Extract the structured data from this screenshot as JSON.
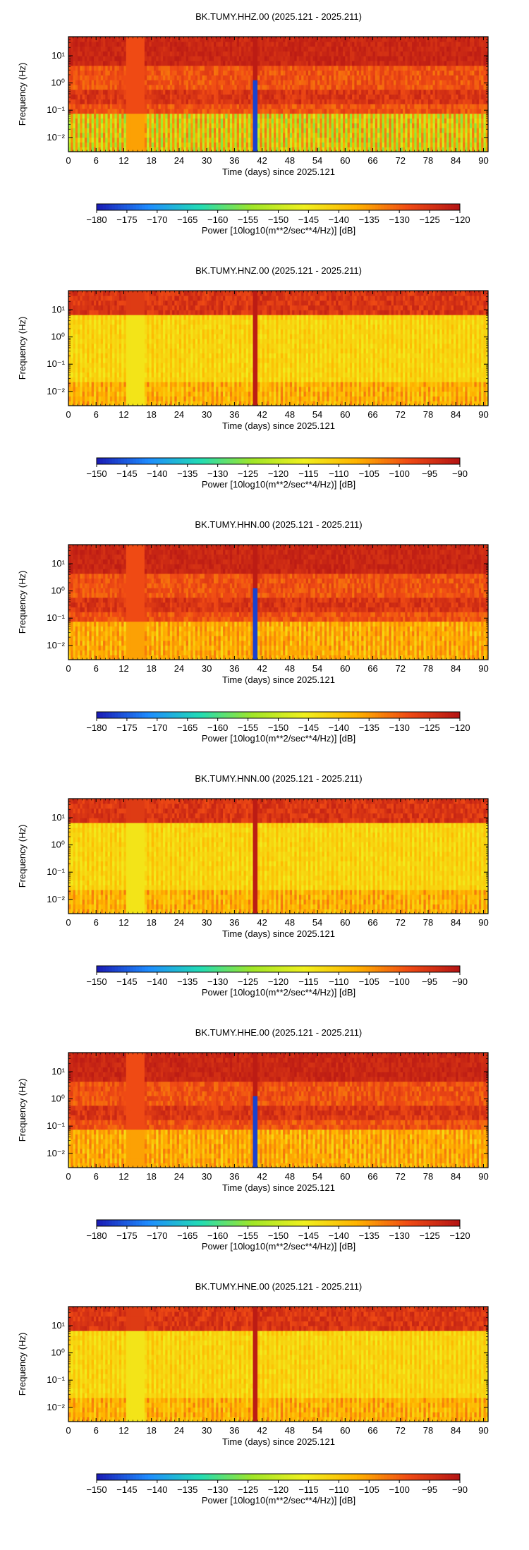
{
  "chart_data": [
    {
      "type": "heatmap",
      "title": "BK.TUMY.HHZ.00 (2025.121 - 2025.211)",
      "xlabel": "Time (days) since 2025.121",
      "ylabel": "Frequency (Hz)",
      "xlim": [
        0,
        91
      ],
      "ylim": [
        0.003,
        50
      ],
      "y_scale": "log",
      "x_ticks": [
        0,
        6,
        12,
        18,
        24,
        30,
        36,
        42,
        48,
        54,
        60,
        66,
        72,
        78,
        84,
        90
      ],
      "y_ticks": [
        0.01,
        0.1,
        1,
        10
      ],
      "y_tick_labels": [
        "10⁻²",
        "10⁻¹",
        "10⁰",
        "10¹"
      ],
      "colorbar": {
        "label": "Power [10log10(m**2/sec**4/Hz)] [dB]",
        "min": -180,
        "max": -120,
        "ticks": [
          -180,
          -175,
          -170,
          -165,
          -160,
          -155,
          -150,
          -145,
          -140,
          -135,
          -130,
          -125,
          -120
        ],
        "colormap": [
          "#1a1ab4",
          "#1e8cff",
          "#22dcb4",
          "#a0e628",
          "#f0f01e",
          "#ffb400",
          "#f04b14",
          "#b41414"
        ]
      },
      "features": {
        "quiet_band_hz": [
          0.003,
          0.08
        ],
        "gap_days": [
          [
            12.5,
            16.5
          ]
        ],
        "glitch_day": 40.5
      }
    },
    {
      "type": "heatmap",
      "title": "BK.TUMY.HNZ.00 (2025.121 - 2025.211)",
      "xlabel": "Time (days) since 2025.121",
      "ylabel": "Frequency (Hz)",
      "xlim": [
        0,
        91
      ],
      "ylim": [
        0.003,
        50
      ],
      "y_scale": "log",
      "x_ticks": [
        0,
        6,
        12,
        18,
        24,
        30,
        36,
        42,
        48,
        54,
        60,
        66,
        72,
        78,
        84,
        90
      ],
      "y_ticks": [
        0.01,
        0.1,
        1,
        10
      ],
      "y_tick_labels": [
        "10⁻²",
        "10⁻¹",
        "10⁰",
        "10¹"
      ],
      "colorbar": {
        "label": "Power [10log10(m**2/sec**4/Hz)] [dB]",
        "min": -150,
        "max": -90,
        "ticks": [
          -150,
          -145,
          -140,
          -135,
          -130,
          -125,
          -120,
          -115,
          -110,
          -105,
          -100,
          -95,
          -90
        ],
        "colormap": [
          "#1a1ab4",
          "#1e8cff",
          "#22dcb4",
          "#a0e628",
          "#f0f01e",
          "#ffb400",
          "#f04b14",
          "#b41414"
        ]
      },
      "features": {
        "gap_days": [
          [
            12.5,
            16.5
          ]
        ],
        "glitch_day": 40.5
      }
    },
    {
      "type": "heatmap",
      "title": "BK.TUMY.HHN.00 (2025.121 - 2025.211)",
      "xlabel": "Time (days) since 2025.121",
      "ylabel": "Frequency (Hz)",
      "xlim": [
        0,
        91
      ],
      "ylim": [
        0.003,
        50
      ],
      "y_scale": "log",
      "x_ticks": [
        0,
        6,
        12,
        18,
        24,
        30,
        36,
        42,
        48,
        54,
        60,
        66,
        72,
        78,
        84,
        90
      ],
      "y_ticks": [
        0.01,
        0.1,
        1,
        10
      ],
      "y_tick_labels": [
        "10⁻²",
        "10⁻¹",
        "10⁰",
        "10¹"
      ],
      "colorbar": {
        "label": "Power [10log10(m**2/sec**4/Hz)] [dB]",
        "min": -180,
        "max": -120,
        "ticks": [
          -180,
          -175,
          -170,
          -165,
          -160,
          -155,
          -150,
          -145,
          -140,
          -135,
          -130,
          -125,
          -120
        ],
        "colormap": [
          "#1a1ab4",
          "#1e8cff",
          "#22dcb4",
          "#a0e628",
          "#f0f01e",
          "#ffb400",
          "#f04b14",
          "#b41414"
        ]
      },
      "features": {
        "gap_days": [
          [
            12.5,
            16.5
          ]
        ],
        "glitch_day": 40.5
      }
    },
    {
      "type": "heatmap",
      "title": "BK.TUMY.HNN.00 (2025.121 - 2025.211)",
      "xlabel": "Time (days) since 2025.121",
      "ylabel": "Frequency (Hz)",
      "xlim": [
        0,
        91
      ],
      "ylim": [
        0.003,
        50
      ],
      "y_scale": "log",
      "x_ticks": [
        0,
        6,
        12,
        18,
        24,
        30,
        36,
        42,
        48,
        54,
        60,
        66,
        72,
        78,
        84,
        90
      ],
      "y_ticks": [
        0.01,
        0.1,
        1,
        10
      ],
      "y_tick_labels": [
        "10⁻²",
        "10⁻¹",
        "10⁰",
        "10¹"
      ],
      "colorbar": {
        "label": "Power [10log10(m**2/sec**4/Hz)] [dB]",
        "min": -150,
        "max": -90,
        "ticks": [
          -150,
          -145,
          -140,
          -135,
          -130,
          -125,
          -120,
          -115,
          -110,
          -105,
          -100,
          -95,
          -90
        ],
        "colormap": [
          "#1a1ab4",
          "#1e8cff",
          "#22dcb4",
          "#a0e628",
          "#f0f01e",
          "#ffb400",
          "#f04b14",
          "#b41414"
        ]
      },
      "features": {
        "gap_days": [
          [
            12.5,
            16.5
          ]
        ],
        "glitch_day": 40.5
      }
    },
    {
      "type": "heatmap",
      "title": "BK.TUMY.HHE.00 (2025.121 - 2025.211)",
      "xlabel": "Time (days) since 2025.121",
      "ylabel": "Frequency (Hz)",
      "xlim": [
        0,
        91
      ],
      "ylim": [
        0.003,
        50
      ],
      "y_scale": "log",
      "x_ticks": [
        0,
        6,
        12,
        18,
        24,
        30,
        36,
        42,
        48,
        54,
        60,
        66,
        72,
        78,
        84,
        90
      ],
      "y_ticks": [
        0.01,
        0.1,
        1,
        10
      ],
      "y_tick_labels": [
        "10⁻²",
        "10⁻¹",
        "10⁰",
        "10¹"
      ],
      "colorbar": {
        "label": "Power [10log10(m**2/sec**4/Hz)] [dB]",
        "min": -180,
        "max": -120,
        "ticks": [
          -180,
          -175,
          -170,
          -165,
          -160,
          -155,
          -150,
          -145,
          -140,
          -135,
          -130,
          -125,
          -120
        ],
        "colormap": [
          "#1a1ab4",
          "#1e8cff",
          "#22dcb4",
          "#a0e628",
          "#f0f01e",
          "#ffb400",
          "#f04b14",
          "#b41414"
        ]
      },
      "features": {
        "gap_days": [
          [
            12.5,
            16.5
          ]
        ],
        "glitch_day": 40.5
      }
    },
    {
      "type": "heatmap",
      "title": "BK.TUMY.HNE.00 (2025.121 - 2025.211)",
      "xlabel": "Time (days) since 2025.121",
      "ylabel": "Frequency (Hz)",
      "xlim": [
        0,
        91
      ],
      "ylim": [
        0.003,
        50
      ],
      "y_scale": "log",
      "x_ticks": [
        0,
        6,
        12,
        18,
        24,
        30,
        36,
        42,
        48,
        54,
        60,
        66,
        72,
        78,
        84,
        90
      ],
      "y_ticks": [
        0.01,
        0.1,
        1,
        10
      ],
      "y_tick_labels": [
        "10⁻²",
        "10⁻¹",
        "10⁰",
        "10¹"
      ],
      "colorbar": {
        "label": "Power [10log10(m**2/sec**4/Hz)] [dB]",
        "min": -150,
        "max": -90,
        "ticks": [
          -150,
          -145,
          -140,
          -135,
          -130,
          -125,
          -120,
          -115,
          -110,
          -105,
          -100,
          -95,
          -90
        ],
        "colormap": [
          "#1a1ab4",
          "#1e8cff",
          "#22dcb4",
          "#a0e628",
          "#f0f01e",
          "#ffb400",
          "#f04b14",
          "#b41414"
        ]
      },
      "features": {
        "gap_days": [
          [
            12.5,
            16.5
          ]
        ],
        "glitch_day": 40.5
      }
    }
  ]
}
